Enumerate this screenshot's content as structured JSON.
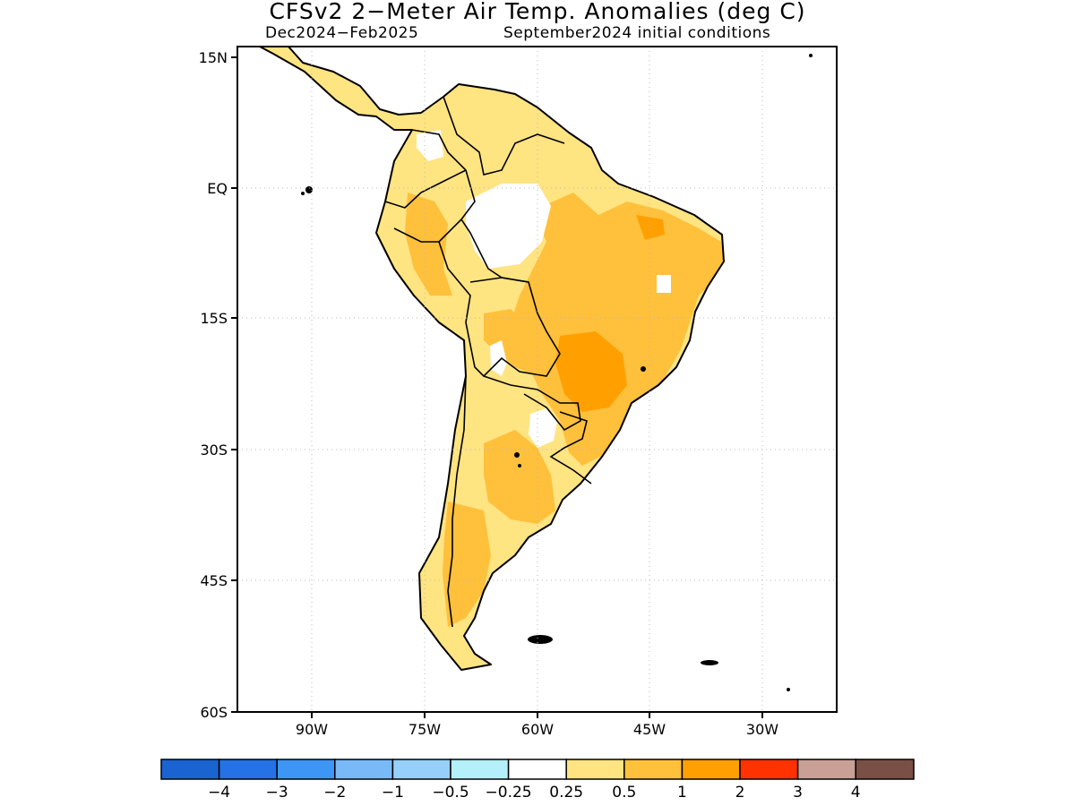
{
  "title": "CFSv2 2−Meter Air Temp. Anomalies (deg C)",
  "subtitle_left": "Dec2024−Feb2025",
  "subtitle_right": "September2024 initial conditions",
  "map": {
    "lat_labels": [
      "15N",
      "EQ",
      "15S",
      "30S",
      "45S",
      "60S"
    ],
    "lon_labels": [
      "90W",
      "75W",
      "60W",
      "45W",
      "30W"
    ],
    "lat_range": [
      -60,
      15
    ],
    "lon_range": [
      -100,
      -20
    ]
  },
  "colorbar": {
    "colors": [
      "#1a64d2",
      "#2472e6",
      "#3d96f5",
      "#78baf8",
      "#96d0fa",
      "#b4f0fa",
      "#ffffff",
      "#ffe482",
      "#ffc03c",
      "#ffa000",
      "#ff3200",
      "#c8a096",
      "#785046"
    ],
    "tick_labels": [
      "−4",
      "−3",
      "−2",
      "−1",
      "−0.5",
      "−0.25",
      "0.25",
      "0.5",
      "1",
      "2",
      "3",
      "4"
    ]
  }
}
